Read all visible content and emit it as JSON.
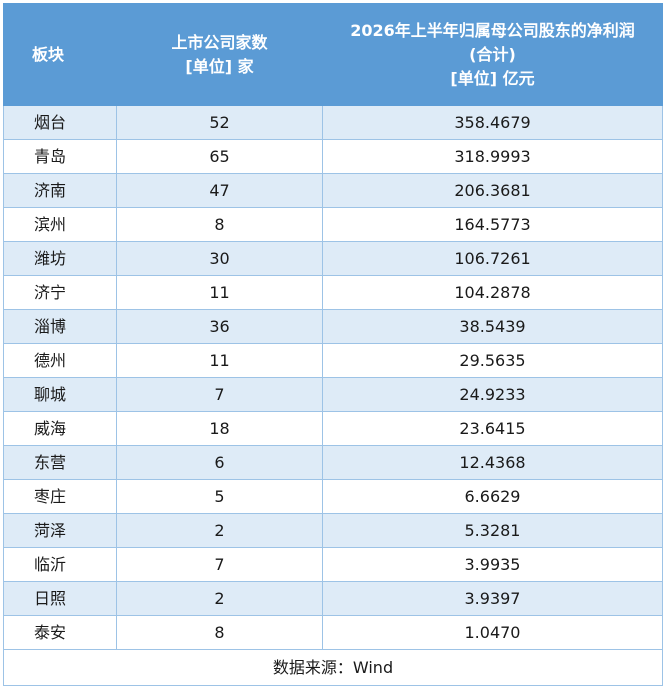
{
  "header": {
    "col1": "板块",
    "col2_line1": "上市公司家数",
    "col2_line2": "[单位] 家",
    "col3_line1": "2026年上半年归属母公司股东的净利润",
    "col3_line2": "(合计)",
    "col3_line3": "[单位] 亿元"
  },
  "rows": [
    {
      "region": "烟台",
      "count": "52",
      "profit": "358.4679"
    },
    {
      "region": "青岛",
      "count": "65",
      "profit": "318.9993"
    },
    {
      "region": "济南",
      "count": "47",
      "profit": "206.3681"
    },
    {
      "region": "滨州",
      "count": "8",
      "profit": "164.5773"
    },
    {
      "region": "潍坊",
      "count": "30",
      "profit": "106.7261"
    },
    {
      "region": "济宁",
      "count": "11",
      "profit": "104.2878"
    },
    {
      "region": "淄博",
      "count": "36",
      "profit": "38.5439"
    },
    {
      "region": "德州",
      "count": "11",
      "profit": "29.5635"
    },
    {
      "region": "聊城",
      "count": "7",
      "profit": "24.9233"
    },
    {
      "region": "威海",
      "count": "18",
      "profit": "23.6415"
    },
    {
      "region": "东营",
      "count": "6",
      "profit": "12.4368"
    },
    {
      "region": "枣庄",
      "count": "5",
      "profit": "6.6629"
    },
    {
      "region": "菏泽",
      "count": "2",
      "profit": "5.3281"
    },
    {
      "region": "临沂",
      "count": "7",
      "profit": "3.9935"
    },
    {
      "region": "日照",
      "count": "2",
      "profit": "3.9397"
    },
    {
      "region": "泰安",
      "count": "8",
      "profit": "1.0470"
    }
  ],
  "footer": {
    "source": "数据来源：Wind"
  },
  "colors": {
    "header_bg": "#5b9bd5",
    "band_bg": "#deebf7",
    "border": "#9dc3e6"
  }
}
